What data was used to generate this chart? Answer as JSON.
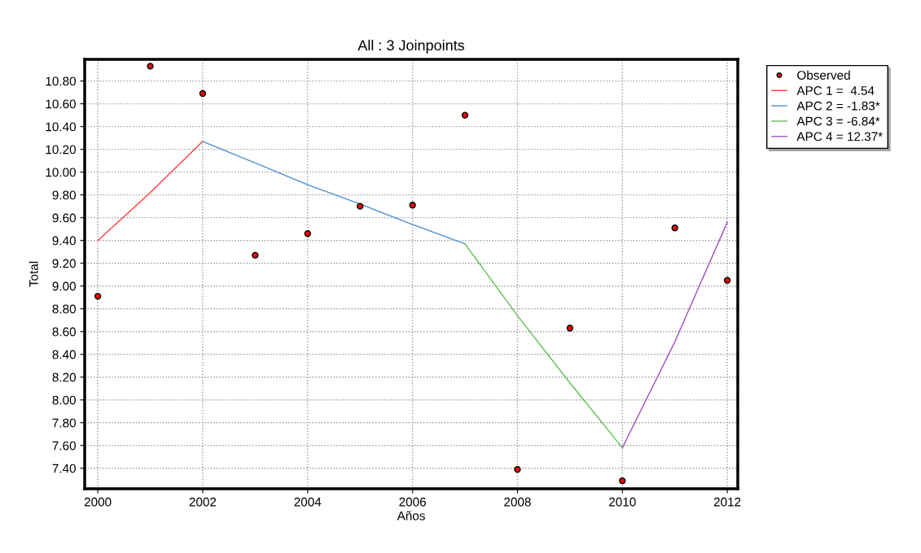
{
  "chart_data": {
    "type": "line",
    "title": "All : 3 Joinpoints",
    "xlabel": "Años",
    "ylabel": "Total",
    "series": [
      {
        "name": "Observed",
        "type": "scatter",
        "marker": "circle",
        "color": "#ff0000",
        "x": [
          2000,
          2001,
          2002,
          2003,
          2004,
          2005,
          2006,
          2007,
          2008,
          2009,
          2010,
          2011,
          2012
        ],
        "values": [
          8.91,
          10.93,
          10.69,
          9.27,
          9.46,
          9.7,
          9.71,
          10.5,
          7.39,
          8.63,
          7.29,
          9.51,
          9.05
        ]
      },
      {
        "name": "APC 1 =  4.54",
        "color": "#ff4040",
        "x": [
          2000,
          2001,
          2002
        ],
        "values": [
          9.4,
          9.82,
          10.27
        ]
      },
      {
        "name": "APC 2 = -1.83*",
        "color": "#4a90d0",
        "x": [
          2002,
          2003,
          2004,
          2005,
          2006,
          2007
        ],
        "values": [
          10.27,
          10.08,
          9.89,
          9.72,
          9.54,
          9.37
        ]
      },
      {
        "name": "APC 3 = -6.84*",
        "color": "#5cc050",
        "x": [
          2007,
          2008,
          2009,
          2010
        ],
        "values": [
          9.37,
          8.74,
          8.15,
          7.58
        ]
      },
      {
        "name": "APC 4 = 12.37*",
        "color": "#a050c0",
        "x": [
          2010,
          2011,
          2012
        ],
        "values": [
          7.58,
          8.51,
          9.56
        ]
      }
    ],
    "xlim": [
      1999.75,
      2012.2
    ],
    "xticks": [
      2000,
      2002,
      2004,
      2006,
      2008,
      2010,
      2012
    ],
    "ylim": [
      7.22,
      10.99
    ],
    "yticks": [
      {
        "value": 7.4,
        "label": "7.40"
      },
      {
        "value": 7.6,
        "label": "7.60"
      },
      {
        "value": 7.8,
        "label": "7.80"
      },
      {
        "value": 8.0,
        "label": "8.00"
      },
      {
        "value": 8.2,
        "label": "8.20"
      },
      {
        "value": 8.4,
        "label": "8.40"
      },
      {
        "value": 8.6,
        "label": "8.60"
      },
      {
        "value": 8.8,
        "label": "8.80"
      },
      {
        "value": 9.0,
        "label": "9.00"
      },
      {
        "value": 9.2,
        "label": "9.20"
      },
      {
        "value": 9.4,
        "label": "9.40"
      },
      {
        "value": 9.6,
        "label": "9.60"
      },
      {
        "value": 9.8,
        "label": "9.80"
      },
      {
        "value": 10.0,
        "label": "10.00"
      },
      {
        "value": 10.2,
        "label": "10.20"
      },
      {
        "value": 10.4,
        "label": "10.40"
      },
      {
        "value": 10.6,
        "label": "10.60"
      },
      {
        "value": 10.8,
        "label": "10.80"
      }
    ],
    "grid": true,
    "legend": "top right",
    "line_style": "solid"
  }
}
